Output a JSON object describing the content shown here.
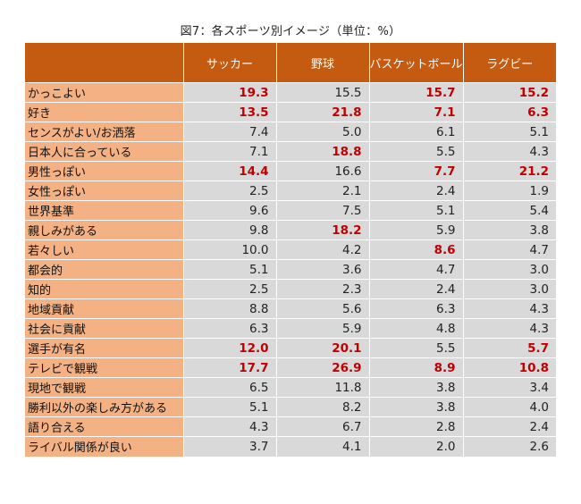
{
  "chart_data": {
    "type": "table",
    "title": "図7：各スポーツ別イメージ（単位：%）",
    "columns": [
      "サッカー",
      "野球",
      "バスケットボール",
      "ラグビー"
    ],
    "rows": [
      {
        "label": "かっこよい",
        "values": [
          "19.3",
          "15.5",
          "15.7",
          "15.2"
        ],
        "highlight": [
          true,
          false,
          true,
          true
        ]
      },
      {
        "label": "好き",
        "values": [
          "13.5",
          "21.8",
          "7.1",
          "6.3"
        ],
        "highlight": [
          true,
          true,
          true,
          true
        ]
      },
      {
        "label": "センスがよい/お洒落",
        "values": [
          "7.4",
          "5.0",
          "6.1",
          "5.1"
        ],
        "highlight": [
          false,
          false,
          false,
          false
        ]
      },
      {
        "label": "日本人に合っている",
        "values": [
          "7.1",
          "18.8",
          "5.5",
          "4.3"
        ],
        "highlight": [
          false,
          true,
          false,
          false
        ]
      },
      {
        "label": "男性っぽい",
        "values": [
          "14.4",
          "16.6",
          "7.7",
          "21.2"
        ],
        "highlight": [
          true,
          false,
          true,
          true
        ]
      },
      {
        "label": "女性っぽい",
        "values": [
          "2.5",
          "2.1",
          "2.4",
          "1.9"
        ],
        "highlight": [
          false,
          false,
          false,
          false
        ]
      },
      {
        "label": "世界基準",
        "values": [
          "9.6",
          "7.5",
          "5.1",
          "5.4"
        ],
        "highlight": [
          false,
          false,
          false,
          false
        ]
      },
      {
        "label": "親しみがある",
        "values": [
          "9.8",
          "18.2",
          "5.9",
          "3.8"
        ],
        "highlight": [
          false,
          true,
          false,
          false
        ]
      },
      {
        "label": "若々しい",
        "values": [
          "10.0",
          "4.2",
          "8.6",
          "4.7"
        ],
        "highlight": [
          false,
          false,
          true,
          false
        ]
      },
      {
        "label": "都会的",
        "values": [
          "5.1",
          "3.6",
          "4.7",
          "3.0"
        ],
        "highlight": [
          false,
          false,
          false,
          false
        ]
      },
      {
        "label": "知的",
        "values": [
          "2.5",
          "2.3",
          "2.4",
          "3.0"
        ],
        "highlight": [
          false,
          false,
          false,
          false
        ]
      },
      {
        "label": "地域貢献",
        "values": [
          "8.8",
          "5.6",
          "6.3",
          "4.3"
        ],
        "highlight": [
          false,
          false,
          false,
          false
        ]
      },
      {
        "label": "社会に貢献",
        "values": [
          "6.3",
          "5.9",
          "4.8",
          "4.3"
        ],
        "highlight": [
          false,
          false,
          false,
          false
        ]
      },
      {
        "label": "選手が有名",
        "values": [
          "12.0",
          "20.1",
          "5.5",
          "5.7"
        ],
        "highlight": [
          true,
          true,
          false,
          true
        ]
      },
      {
        "label": "テレビで観戦",
        "values": [
          "17.7",
          "26.9",
          "8.9",
          "10.8"
        ],
        "highlight": [
          true,
          true,
          true,
          true
        ]
      },
      {
        "label": "現地で観戦",
        "values": [
          "6.5",
          "11.8",
          "3.8",
          "3.4"
        ],
        "highlight": [
          false,
          false,
          false,
          false
        ]
      },
      {
        "label": "勝利以外の楽しみ方がある",
        "values": [
          "5.1",
          "8.2",
          "3.8",
          "4.0"
        ],
        "highlight": [
          false,
          false,
          false,
          false
        ]
      },
      {
        "label": "語り合える",
        "values": [
          "4.3",
          "6.7",
          "2.8",
          "2.4"
        ],
        "highlight": [
          false,
          false,
          false,
          false
        ]
      },
      {
        "label": "ライバル関係が良い",
        "values": [
          "3.7",
          "4.1",
          "2.0",
          "2.6"
        ],
        "highlight": [
          false,
          false,
          false,
          false
        ]
      }
    ],
    "colors": {
      "header_bg": "#c55a11",
      "label_bg": "#f4b183",
      "value_bg": "#d9d9d9",
      "highlight_text": "#c00000"
    }
  }
}
